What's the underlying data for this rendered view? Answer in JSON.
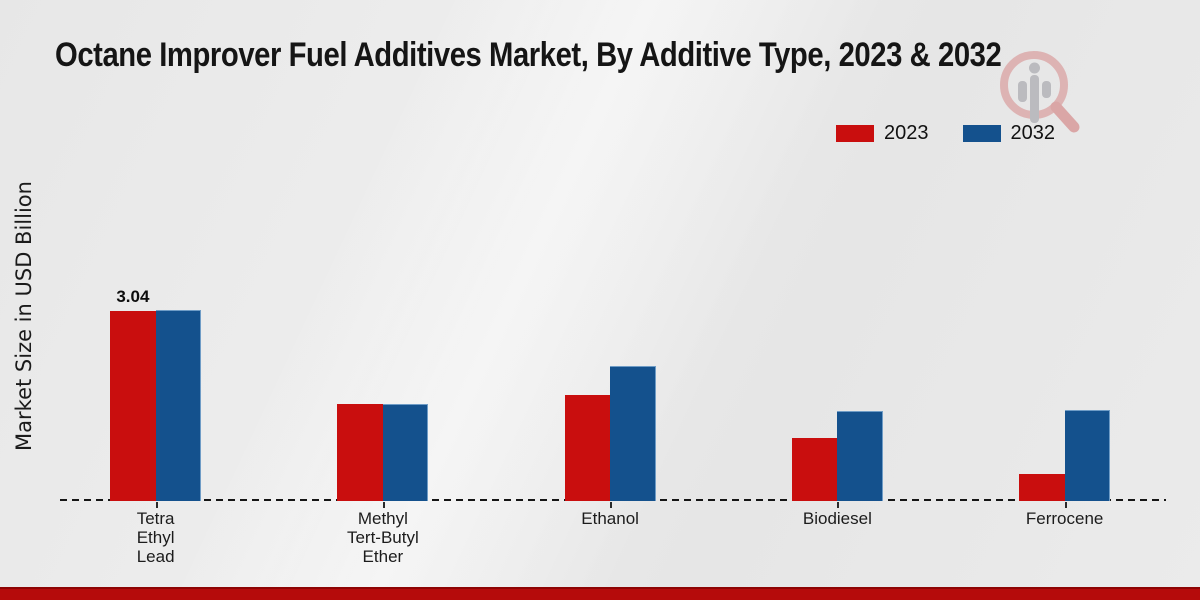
{
  "page": {
    "background_color": "#e9e9e9",
    "footer_color": "#b50b0b"
  },
  "header": {
    "title": "Octane Improver Fuel Additives Market, By Additive Type, 2023 & 2032",
    "logo_name": "magnifier-bar-chart-logo"
  },
  "chart_data": {
    "type": "bar",
    "title": "Octane Improver Fuel Additives Market, By Additive Type, 2023 & 2032",
    "ylabel": "Market Size in USD Billion",
    "xlabel": "",
    "categories": [
      "Tetra Ethyl Lead",
      "Methyl Tert-Butyl Ether",
      "Ethanol",
      "Biodiesel",
      "Ferrocene"
    ],
    "category_label_lines": [
      [
        "Tetra",
        "Ethyl",
        "Lead"
      ],
      [
        "Methyl",
        "Tert-Butyl",
        "Ether"
      ],
      [
        "Ethanol"
      ],
      [
        "Biodiesel"
      ],
      [
        "Ferrocene"
      ]
    ],
    "series": [
      {
        "name": "2023",
        "color": "#c90e0e",
        "edge_color": "#d94a3a",
        "values": [
          3.04,
          1.55,
          1.7,
          1.01,
          0.43
        ]
      },
      {
        "name": "2032",
        "color": "#14518d",
        "edge_color": "#6f9cc6",
        "values": [
          3.06,
          1.55,
          2.16,
          1.44,
          1.46
        ]
      }
    ],
    "bar_labels": [
      {
        "series_index": 0,
        "category_index": 0,
        "text": "3.04"
      }
    ],
    "ylim": [
      0,
      3.2
    ],
    "y_axis_ticks_visible": false,
    "grid": false,
    "baseline_style": "dashed",
    "legend_position": "top-right"
  }
}
